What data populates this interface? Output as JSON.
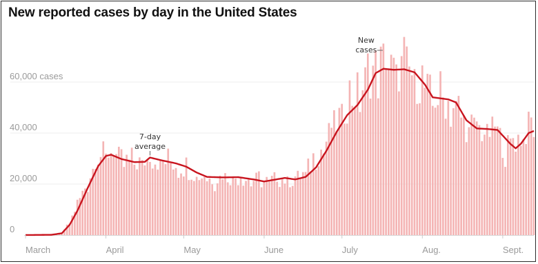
{
  "chart_data": {
    "type": "bar",
    "title": "New reported cases by day in the United States",
    "ylim": [
      0,
      75000
    ],
    "y_ticks": [
      {
        "value": 0,
        "label": "0"
      },
      {
        "value": 20000,
        "label": "20,000"
      },
      {
        "value": 40000,
        "label": "40,000"
      },
      {
        "value": 60000,
        "label": "60,000 cases"
      }
    ],
    "x_ticks": [
      {
        "day": 0,
        "label": "March"
      },
      {
        "day": 31,
        "label": "April"
      },
      {
        "day": 61,
        "label": "May"
      },
      {
        "day": 92,
        "label": "June"
      },
      {
        "day": 122,
        "label": "July"
      },
      {
        "day": 153,
        "label": "Aug."
      },
      {
        "day": 184,
        "label": "Sept."
      }
    ],
    "series": [
      {
        "name": "New cases",
        "style": "bars",
        "color": "#f4b4b4",
        "anchors": [
          [
            0,
            0
          ],
          [
            10,
            200
          ],
          [
            14,
            800
          ],
          [
            17,
            5000
          ],
          [
            20,
            12000
          ],
          [
            24,
            21000
          ],
          [
            28,
            31000
          ],
          [
            33,
            33000
          ],
          [
            36,
            30000
          ],
          [
            42,
            28000
          ],
          [
            48,
            30000
          ],
          [
            52,
            29000
          ],
          [
            58,
            28000
          ],
          [
            64,
            25000
          ],
          [
            70,
            22000
          ],
          [
            78,
            23000
          ],
          [
            86,
            22000
          ],
          [
            92,
            21000
          ],
          [
            98,
            22000
          ],
          [
            104,
            21500
          ],
          [
            108,
            25000
          ],
          [
            112,
            30000
          ],
          [
            116,
            37000
          ],
          [
            120,
            44000
          ],
          [
            124,
            52000
          ],
          [
            130,
            58000
          ],
          [
            134,
            65000
          ],
          [
            138,
            68000
          ],
          [
            142,
            64000
          ],
          [
            146,
            66000
          ],
          [
            150,
            62000
          ],
          [
            156,
            55000
          ],
          [
            164,
            52000
          ],
          [
            170,
            43000
          ],
          [
            176,
            41000
          ],
          [
            182,
            40000
          ],
          [
            185,
            34000
          ],
          [
            188,
            36000
          ],
          [
            194,
            42000
          ],
          [
            196,
            41000
          ]
        ]
      },
      {
        "name": "7-day average",
        "style": "line",
        "color": "#c8141e",
        "anchors": [
          [
            0,
            0
          ],
          [
            10,
            100
          ],
          [
            14,
            700
          ],
          [
            17,
            4000
          ],
          [
            20,
            9500
          ],
          [
            24,
            18500
          ],
          [
            28,
            27000
          ],
          [
            31,
            31000
          ],
          [
            33,
            31500
          ],
          [
            37,
            29800
          ],
          [
            42,
            28600
          ],
          [
            46,
            28700
          ],
          [
            48,
            30400
          ],
          [
            52,
            29400
          ],
          [
            58,
            28100
          ],
          [
            62,
            26800
          ],
          [
            66,
            24500
          ],
          [
            70,
            22800
          ],
          [
            76,
            22600
          ],
          [
            82,
            22700
          ],
          [
            88,
            21800
          ],
          [
            92,
            21000
          ],
          [
            96,
            21700
          ],
          [
            100,
            22400
          ],
          [
            104,
            21800
          ],
          [
            108,
            22800
          ],
          [
            112,
            26500
          ],
          [
            116,
            33000
          ],
          [
            120,
            40500
          ],
          [
            124,
            47000
          ],
          [
            128,
            51000
          ],
          [
            132,
            57000
          ],
          [
            135,
            63500
          ],
          [
            138,
            65200
          ],
          [
            142,
            64800
          ],
          [
            146,
            65000
          ],
          [
            150,
            63800
          ],
          [
            154,
            59000
          ],
          [
            157,
            54000
          ],
          [
            163,
            53200
          ],
          [
            166,
            52000
          ],
          [
            170,
            45000
          ],
          [
            174,
            41800
          ],
          [
            178,
            41600
          ],
          [
            182,
            41200
          ],
          [
            184,
            39000
          ],
          [
            187,
            35700
          ],
          [
            189,
            34000
          ],
          [
            191,
            35800
          ],
          [
            194,
            40000
          ],
          [
            196,
            40800
          ]
        ]
      }
    ],
    "annotations": [
      {
        "label": "7-day average",
        "lines": [
          "7-day",
          "average"
        ],
        "day": 48
      },
      {
        "label": "New cases",
        "lines": [
          "New",
          "cases"
        ],
        "day": 134
      }
    ]
  }
}
